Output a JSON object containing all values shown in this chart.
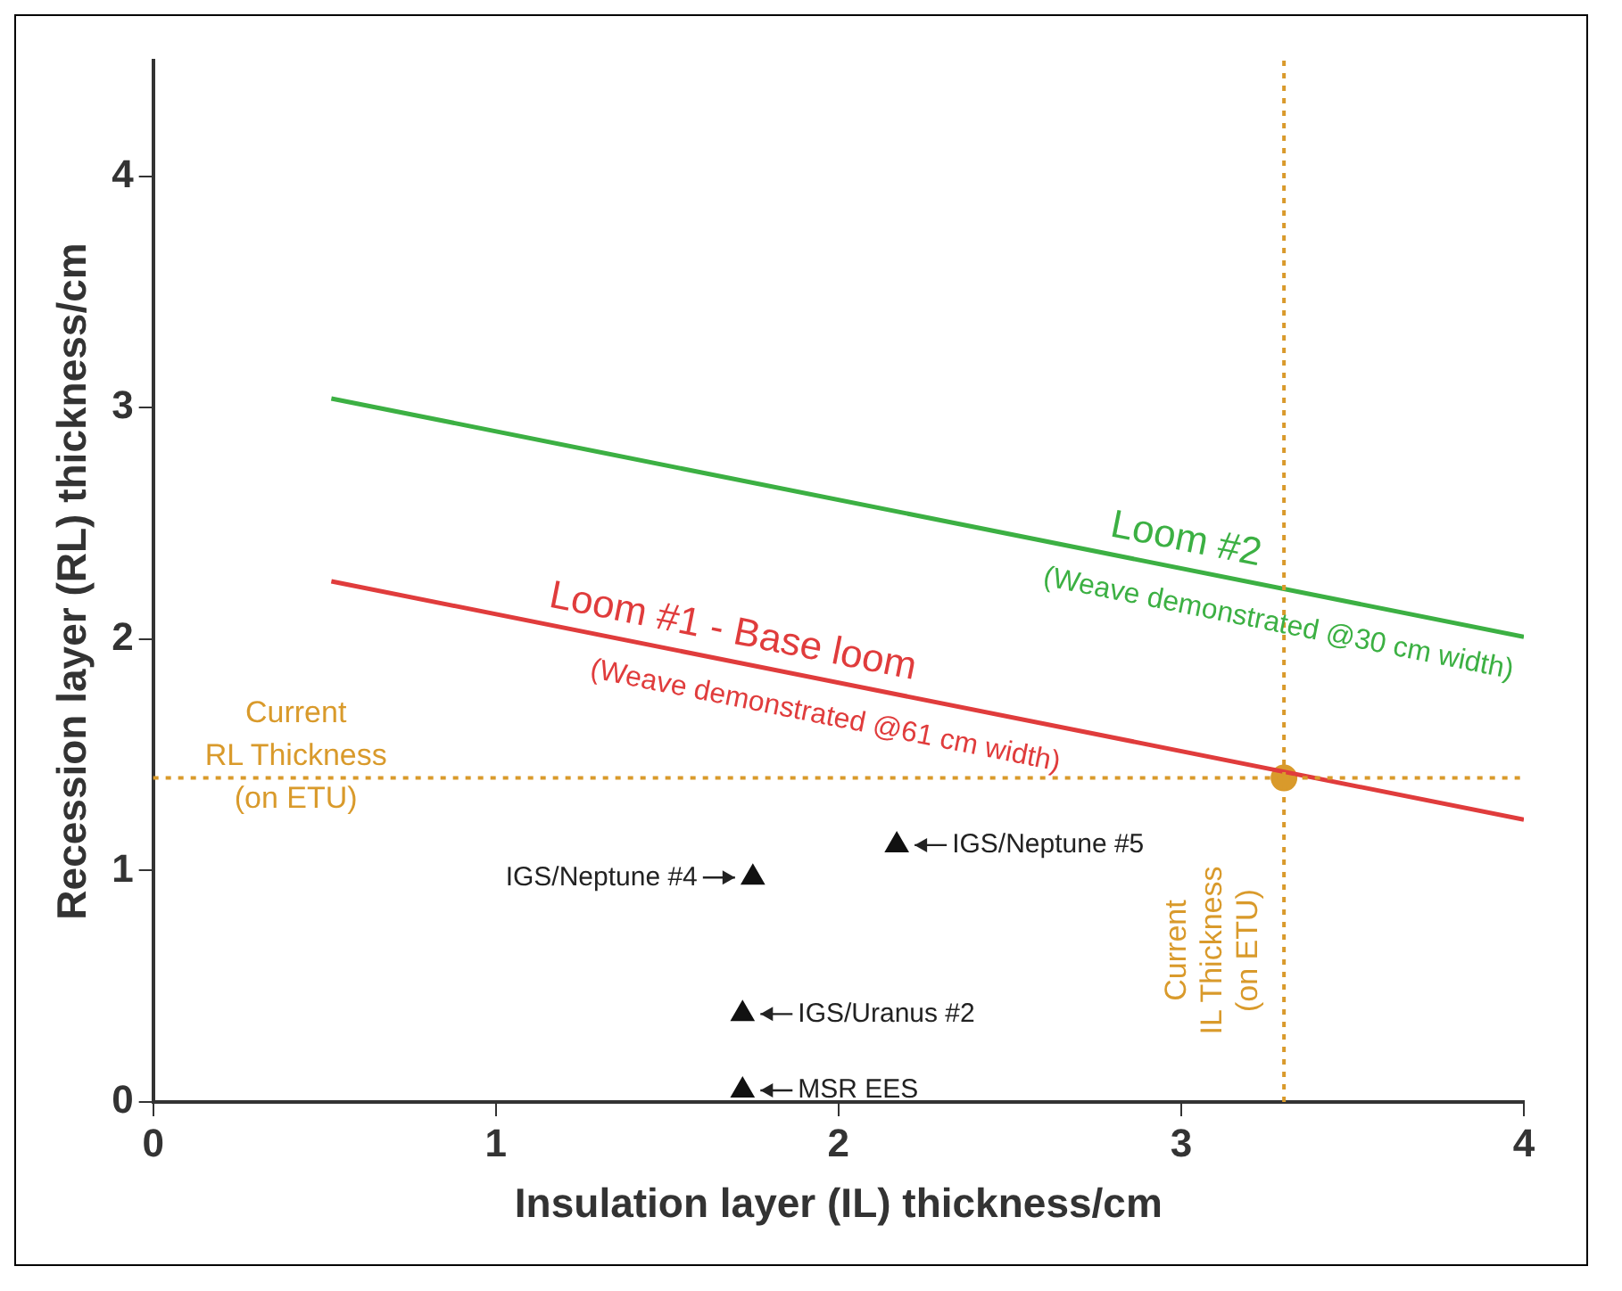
{
  "chart_data": {
    "type": "scatter",
    "xlabel": "Insulation layer (IL) thickness/cm",
    "ylabel": "Recession layer (RL) thickness/cm",
    "xlim": [
      0,
      4
    ],
    "xticks": [
      0,
      1,
      2,
      3,
      4
    ],
    "ylim": [
      0,
      4.5
    ],
    "yticks": [
      0,
      1,
      2,
      3,
      4
    ],
    "grid": false,
    "legend": false,
    "series": [
      {
        "name": "Loom #2",
        "type": "line",
        "color": "#3cb043",
        "marker": "none",
        "line_style": "solid",
        "x": [
          0.52,
          4
        ],
        "values": [
          3.04,
          2.01
        ]
      },
      {
        "name": "Loom #1 - Base loom",
        "type": "line",
        "color": "#e03c3c",
        "marker": "none",
        "line_style": "solid",
        "x": [
          0.52,
          4
        ],
        "values": [
          2.25,
          1.22
        ]
      },
      {
        "type": "scatter",
        "color": "#111111",
        "marker": "triangle",
        "x": [
          1.75,
          2.17,
          1.72,
          1.72
        ],
        "values": [
          0.97,
          1.11,
          0.38,
          0.05
        ]
      },
      {
        "type": "scatter",
        "color": "#d99a2b",
        "marker": "circle",
        "x": [
          3.3
        ],
        "values": [
          1.4
        ]
      }
    ],
    "ref_lines": [
      {
        "axis": "y",
        "value": 1.4,
        "label": "Current\nRL Thickness\n(on ETU)",
        "color": "#d99a2b",
        "line_style": "dotted"
      },
      {
        "axis": "x",
        "value": 3.3,
        "label": "Current\nIL Thickness\n(on ETU)",
        "color": "#d99a2b",
        "line_style": "dotted"
      }
    ],
    "annotations": [
      "(Weave demonstrated @30 cm width)",
      "(Weave demonstrated @61 cm width)",
      {
        "text": "IGS/Neptune #4",
        "x": 1.75,
        "y": 0.97
      },
      {
        "text": "IGS/Neptune #5",
        "x": 2.17,
        "y": 1.11
      },
      {
        "text": "IGS/Uranus #2",
        "x": 1.72,
        "y": 0.38
      },
      {
        "text": "MSR EES",
        "x": 1.72,
        "y": 0.05
      }
    ]
  }
}
